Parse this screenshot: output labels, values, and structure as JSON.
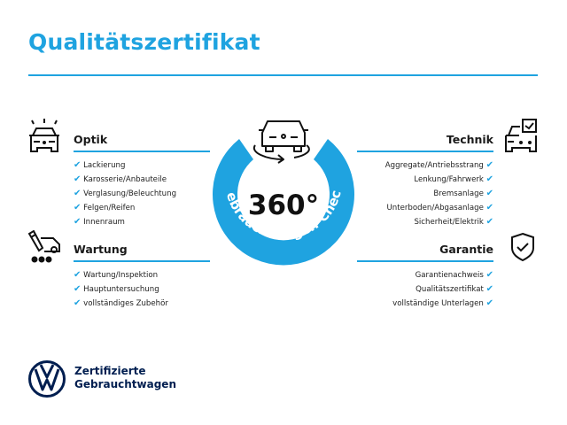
{
  "title": "Qualitätszertifikat",
  "colors": {
    "accent": "#1fa3e0",
    "brand_navy": "#001e50"
  },
  "center": {
    "number": "360°",
    "ring_text": "Gebrauchtwagen-Check",
    "icon": "car-rotate-icon"
  },
  "sections": {
    "optik": {
      "heading": "Optik",
      "icon": "car-lights-icon",
      "items": [
        "Lackierung",
        "Karosserie/Anbauteile",
        "Verglasung/Beleuchtung",
        "Felgen/Reifen",
        "Innenraum"
      ]
    },
    "wartung": {
      "heading": "Wartung",
      "icon": "service-cart-icon",
      "items": [
        "Wartung/Inspektion",
        "Hauptuntersuchung",
        "vollständiges Zubehör"
      ]
    },
    "technik": {
      "heading": "Technik",
      "icon": "car-checkbox-icon",
      "items": [
        "Aggregate/Antriebsstrang",
        "Lenkung/Fahrwerk",
        "Bremsanlage",
        "Unterboden/Abgasanlage",
        "Sicherheit/Elektrik"
      ]
    },
    "garantie": {
      "heading": "Garantie",
      "icon": "shield-check-icon",
      "items": [
        "Garantienachweis",
        "Qualitätszertifikat",
        "vollständige Unterlagen"
      ]
    }
  },
  "check_mark": "✔",
  "brand": {
    "line1": "Zertifizierte",
    "line2": "Gebrauchtwagen",
    "logo": "vw-logo"
  }
}
